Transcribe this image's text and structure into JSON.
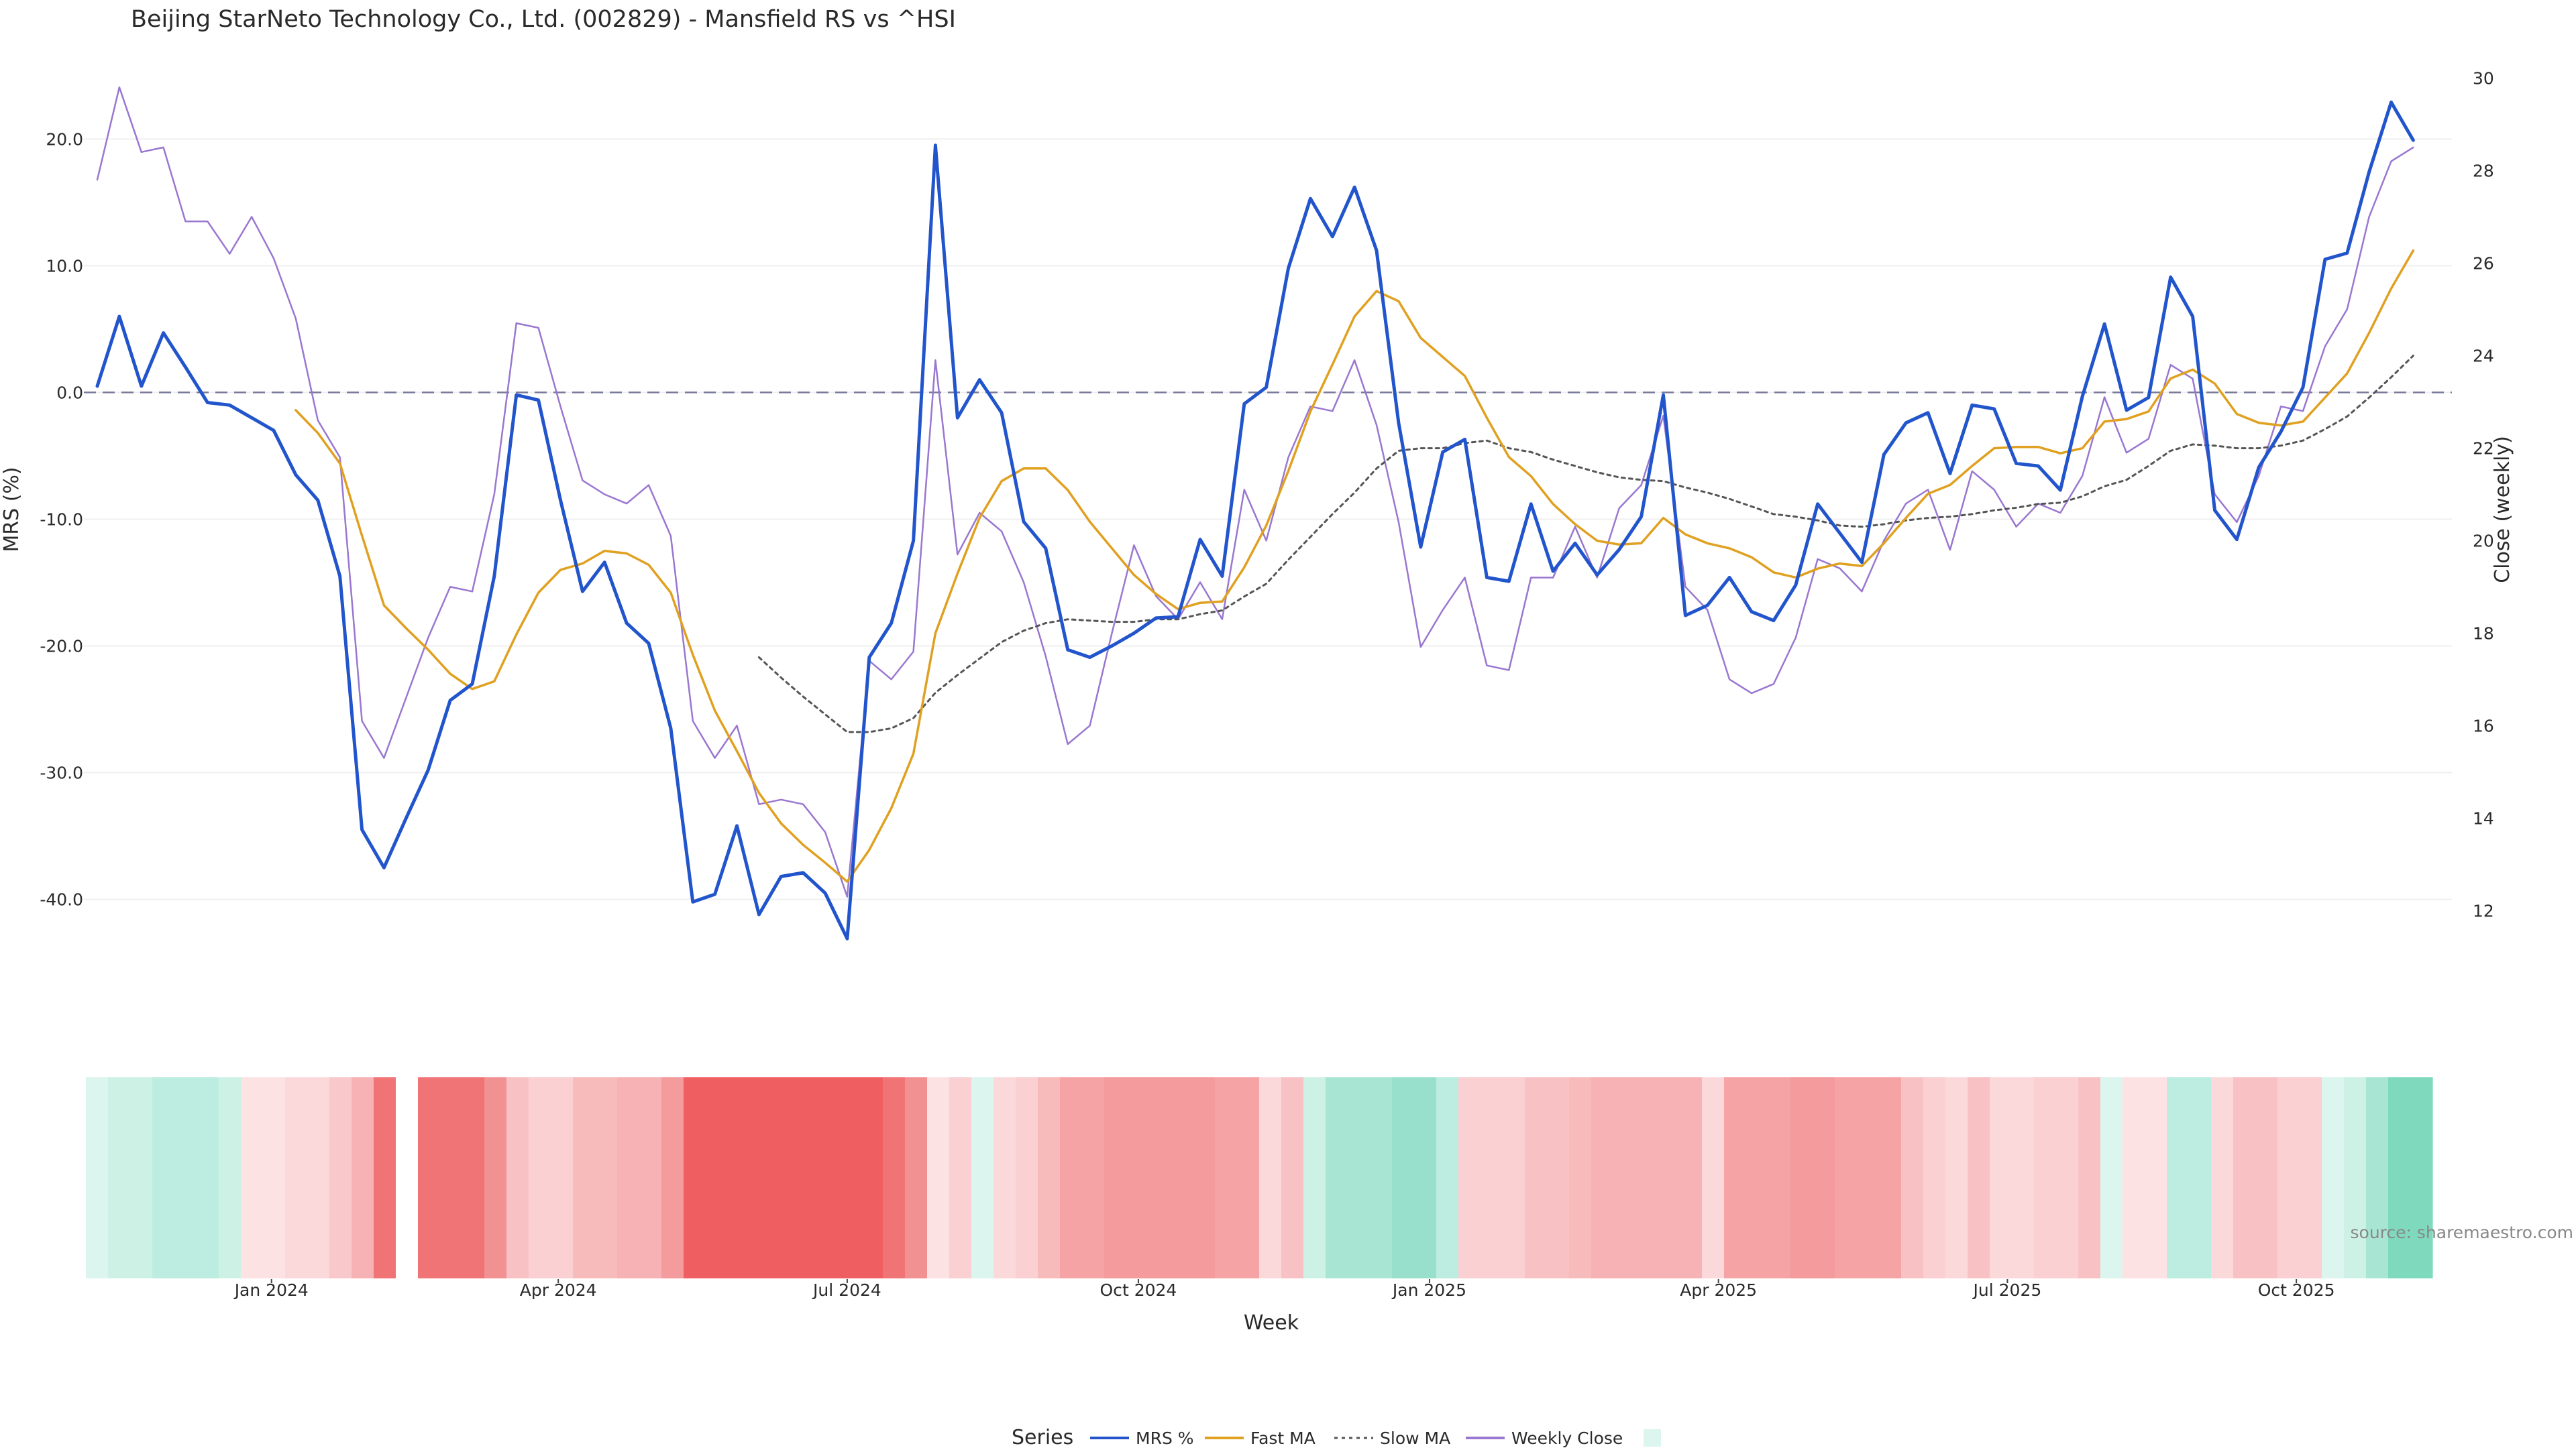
{
  "chart_data": {
    "type": "line",
    "title": "Beijing StarNeto Technology Co., Ltd. (002829) - Mansfield RS vs ^HSI",
    "xlabel": "Week",
    "ylabel_left": "MRS (%)",
    "ylabel_right": "Close (weekly)",
    "source": "source: sharemaestro.com",
    "ylim_left": [
      -46,
      27
    ],
    "ylim_right": [
      10.6,
      30.6
    ],
    "left_ticks": [
      "20.0",
      "10.0",
      "0.0",
      "-10.0",
      "-20.0",
      "-30.0",
      "-40.0"
    ],
    "left_tick_values": [
      20,
      10,
      0,
      -10,
      -20,
      -30,
      -40
    ],
    "right_ticks": [
      "30",
      "28",
      "26",
      "24",
      "22",
      "20",
      "18",
      "16",
      "14",
      "12"
    ],
    "right_tick_values": [
      30,
      28,
      26,
      24,
      22,
      20,
      18,
      16,
      14,
      12
    ],
    "x_tick_labels": [
      "Jan 2024",
      "Apr 2024",
      "Jul 2024",
      "Oct 2024",
      "Jan 2025",
      "Apr 2025",
      "Jul 2025",
      "Oct 2025"
    ],
    "x_tick_weeks": [
      7.9,
      20.9,
      34.0,
      47.2,
      60.4,
      73.5,
      86.6,
      99.7
    ],
    "reference_line": 0,
    "series": [
      {
        "name": "MRS %",
        "color": "#2255cc",
        "axis": "left",
        "values": [
          0.5,
          6.0,
          0.5,
          4.7,
          2.0,
          -0.8,
          -1.0,
          -2.0,
          -3.0,
          -6.5,
          -8.5,
          -14.5,
          -34.5,
          -37.5,
          -33.6,
          -29.8,
          -24.3,
          -23.0,
          -14.5,
          -0.2,
          -0.6,
          -8.5,
          -15.7,
          -13.4,
          -18.2,
          -19.8,
          -26.5,
          -40.2,
          -39.6,
          -34.2,
          -41.2,
          -38.2,
          -37.9,
          -39.5,
          -43.1,
          -20.9,
          -18.2,
          -11.7,
          19.5,
          -2.0,
          1.0,
          -1.6,
          -10.2,
          -12.3,
          -20.3,
          -20.9,
          -20.0,
          -19.0,
          -17.8,
          -17.7,
          -11.6,
          -14.5,
          -0.9,
          0.4,
          9.8,
          15.3,
          12.3,
          16.2,
          11.2,
          -2.4,
          -12.2,
          -4.7,
          -3.7,
          -14.6,
          -14.9,
          -8.8,
          -14.1,
          -11.9,
          -14.4,
          -12.4,
          -9.8,
          -0.2,
          -17.6,
          -16.8,
          -14.6,
          -17.3,
          -18.0,
          -15.2,
          -8.8,
          -11.1,
          -13.4,
          -4.9,
          -2.4,
          -1.6,
          -6.4,
          -1.0,
          -1.3,
          -5.6,
          -5.8,
          -7.7,
          -0.3,
          5.4,
          -1.4,
          -0.4,
          9.1,
          6.0,
          -9.3,
          -11.6,
          -5.9,
          -3.1,
          0.4,
          10.5,
          11.0,
          17.4,
          22.9,
          19.9
        ]
      },
      {
        "name": "Fast MA",
        "color": "#e0a020",
        "axis": "left",
        "start": 9,
        "values": [
          -1.4,
          -3.2,
          -5.6,
          -11.3,
          -16.8,
          -18.6,
          -20.3,
          -22.2,
          -23.4,
          -22.8,
          -19.1,
          -15.8,
          -14.0,
          -13.5,
          -12.5,
          -12.7,
          -13.6,
          -15.8,
          -20.7,
          -25.1,
          -28.3,
          -31.6,
          -34.0,
          -35.7,
          -37.1,
          -38.6,
          -36.1,
          -32.8,
          -28.5,
          -19.0,
          -14.3,
          -9.9,
          -7.0,
          -6.0,
          -6.0,
          -7.7,
          -10.2,
          -12.3,
          -14.4,
          -15.9,
          -17.1,
          -16.6,
          -16.5,
          -13.8,
          -10.5,
          -6.2,
          -1.5,
          2.2,
          6.0,
          8.0,
          7.2,
          4.3,
          2.8,
          1.3,
          -2.0,
          -5.1,
          -6.6,
          -8.8,
          -10.4,
          -11.7,
          -12.0,
          -11.9,
          -9.9,
          -11.2,
          -11.9,
          -12.3,
          -13.0,
          -14.2,
          -14.6,
          -13.9,
          -13.5,
          -13.7,
          -11.9,
          -9.9,
          -8.0,
          -7.3,
          -5.8,
          -4.4,
          -4.3,
          -4.3,
          -4.8,
          -4.4,
          -2.3,
          -2.1,
          -1.5,
          1.1,
          1.8,
          0.7,
          -1.7,
          -2.4,
          -2.6,
          -2.3,
          -0.4,
          1.5,
          4.7,
          8.2,
          11.2
        ]
      },
      {
        "name": "Slow MA",
        "color": "#555555",
        "axis": "left",
        "start": 30,
        "values": [
          -20.9,
          -22.5,
          -24.0,
          -25.4,
          -26.8,
          -26.8,
          -26.5,
          -25.7,
          -23.7,
          -22.3,
          -21.0,
          -19.7,
          -18.8,
          -18.2,
          -17.9,
          -18.0,
          -18.1,
          -18.1,
          -17.9,
          -17.9,
          -17.5,
          -17.2,
          -16.1,
          -15.1,
          -13.2,
          -11.4,
          -9.6,
          -7.9,
          -6.0,
          -4.6,
          -4.4,
          -4.4,
          -4.0,
          -3.8,
          -4.4,
          -4.7,
          -5.3,
          -5.8,
          -6.3,
          -6.7,
          -6.9,
          -7.0,
          -7.5,
          -7.9,
          -8.4,
          -9.0,
          -9.6,
          -9.8,
          -10.1,
          -10.5,
          -10.6,
          -10.4,
          -10.1,
          -9.9,
          -9.8,
          -9.6,
          -9.3,
          -9.1,
          -8.8,
          -8.7,
          -8.2,
          -7.4,
          -6.9,
          -5.8,
          -4.6,
          -4.1,
          -4.2,
          -4.4,
          -4.4,
          -4.2,
          -3.8,
          -2.9,
          -1.9,
          -0.4,
          1.2,
          2.9
        ]
      },
      {
        "name": "Weekly Close",
        "color": "#9a77d0",
        "axis": "right",
        "values": [
          27.8,
          29.8,
          28.4,
          28.5,
          26.9,
          26.9,
          26.2,
          27.0,
          26.1,
          24.8,
          22.6,
          21.8,
          16.1,
          15.3,
          16.6,
          17.9,
          19.0,
          18.9,
          21.0,
          24.7,
          24.6,
          22.9,
          21.3,
          21.0,
          20.8,
          21.2,
          20.1,
          16.1,
          15.3,
          16.0,
          14.3,
          14.4,
          14.3,
          13.7,
          12.3,
          17.4,
          17.0,
          17.6,
          23.9,
          19.7,
          20.6,
          20.2,
          19.1,
          17.5,
          15.6,
          16.0,
          18.0,
          19.9,
          18.8,
          18.3,
          19.1,
          18.3,
          21.1,
          20.0,
          21.8,
          22.9,
          22.8,
          23.9,
          22.5,
          20.4,
          17.7,
          18.5,
          19.2,
          17.3,
          17.2,
          19.2,
          19.2,
          20.3,
          19.2,
          20.7,
          21.2,
          22.7,
          19.0,
          18.5,
          17.0,
          16.7,
          16.9,
          17.9,
          19.6,
          19.4,
          18.9,
          20.0,
          20.8,
          21.1,
          19.8,
          21.5,
          21.1,
          20.3,
          20.8,
          20.6,
          21.4,
          23.1,
          21.9,
          22.2,
          23.8,
          23.5,
          21.0,
          20.4,
          21.4,
          22.9,
          22.8,
          24.2,
          25.0,
          27.0,
          28.2,
          28.5
        ]
      }
    ],
    "heatmap_colors": [
      "#dcf5ee",
      "#cdf2e5",
      "#cdf2e5",
      "#bdede0",
      "#bdede0",
      "#bdede0",
      "#cdf2e5",
      "#fde2e4",
      "#fde2e4",
      "#fbd8da",
      "#fbd8da",
      "#f9c8ca",
      "#f6b2b4",
      "#f07476",
      "#ffffff",
      "#f07476",
      "#f07476",
      "#f07476",
      "#f29192",
      "#f8c2c4",
      "#fad0d2",
      "#fad0d2",
      "#f8bbbc",
      "#f8bbbc",
      "#f6b2b4",
      "#f6b2b4",
      "#f49b9d",
      "#ef5f62",
      "#ef5f62",
      "#ef5f62",
      "#ef5f62",
      "#ef5f62",
      "#ef5f62",
      "#ef5f62",
      "#ef5f62",
      "#ef5f62",
      "#f07476",
      "#f29192",
      "#fde2e4",
      "#fad0d2",
      "#dcf5ee",
      "#fbd8da",
      "#fad0d2",
      "#f8bbbc",
      "#f6a3a5",
      "#f6a3a5",
      "#f49b9d",
      "#f49b9d",
      "#f49b9d",
      "#f49b9d",
      "#f49b9d",
      "#f6a3a5",
      "#f6a3a5",
      "#fbd8da",
      "#f8c2c4",
      "#cdf2e5",
      "#a8e6d3",
      "#a8e6d3",
      "#a8e6d3",
      "#98e0cb",
      "#98e0cb",
      "#bdede0",
      "#fad0d2",
      "#fad0d2",
      "#fad0d2",
      "#f8c2c4",
      "#f8c2c4",
      "#f8bbbc",
      "#f6b2b4",
      "#f6b2b4",
      "#f6b2b4",
      "#f6b2b4",
      "#f6b2b4",
      "#fbd8da",
      "#f6a3a5",
      "#f6a3a5",
      "#f6a3a5",
      "#f49b9d",
      "#f49b9d",
      "#f6a3a5",
      "#f6a3a5",
      "#f6a3a5",
      "#f8c2c4",
      "#fad0d2",
      "#fbd8da",
      "#f8c2c4",
      "#fbd8da",
      "#fbd8da",
      "#fad0d2",
      "#fad0d2",
      "#f8c2c4",
      "#dcf5ee",
      "#fde2e4",
      "#fde2e4",
      "#bdede0",
      "#bdede0",
      "#fbd8da",
      "#f8c2c4",
      "#f8c2c4",
      "#fad0d2",
      "#fad0d2",
      "#dcf5ee",
      "#cdf2e5",
      "#a8e6d3",
      "#7fd9bd",
      "#7fd9bd"
    ],
    "legend": {
      "title": "Series",
      "items": [
        {
          "label": "MRS %",
          "color": "#2255cc",
          "style": "solid"
        },
        {
          "label": "Fast MA",
          "color": "#e0a020",
          "style": "solid"
        },
        {
          "label": "Slow MA",
          "color": "#555555",
          "style": "dotted"
        },
        {
          "label": "Weekly Close",
          "color": "#9a77d0",
          "style": "solid"
        },
        {
          "label": "",
          "color": "#dcf5ee",
          "style": "swatch"
        }
      ]
    }
  }
}
